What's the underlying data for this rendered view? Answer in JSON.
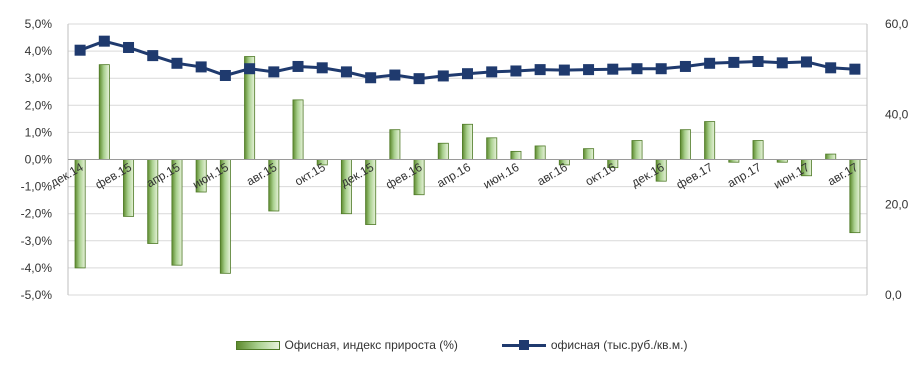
{
  "chart_data": {
    "type": "bar+line",
    "categories": [
      "дек.14",
      "янв.15",
      "фев.15",
      "мар.15",
      "апр.15",
      "май.15",
      "июн.15",
      "июл.15",
      "авг.15",
      "сен.15",
      "окт.15",
      "ноя.15",
      "дек.15",
      "янв.16",
      "фев.16",
      "мар.16",
      "апр.16",
      "май.16",
      "июн.16",
      "июл.16",
      "авг.16",
      "сен.16",
      "окт.16",
      "ноя.16",
      "дек.16",
      "янв.17",
      "фев.17",
      "мар.17",
      "апр.17",
      "май.17",
      "июн.17",
      "июл.17",
      "авг.17"
    ],
    "tick_labels": [
      "дек.14",
      "фев.15",
      "апр.15",
      "июн.15",
      "авг.15",
      "окт.15",
      "дек.15",
      "фев.16",
      "апр.16",
      "июн.16",
      "авг.16",
      "окт.16",
      "дек.16",
      "фев.17",
      "апр.17",
      "июн.17",
      "авг.17"
    ],
    "series": [
      {
        "name": "Офисная, индекс прироста (%)",
        "type": "bar",
        "axis": "left",
        "values": [
          -4.0,
          3.5,
          -2.1,
          -3.1,
          -3.9,
          -1.2,
          -4.2,
          3.8,
          -1.9,
          2.2,
          -0.2,
          -2.0,
          -2.4,
          1.1,
          -1.3,
          0.6,
          1.3,
          0.8,
          0.3,
          0.5,
          -0.2,
          0.4,
          -0.3,
          0.7,
          -0.8,
          1.1,
          1.4,
          -0.1,
          0.7,
          -0.1,
          -0.6,
          0.2,
          -2.7
        ]
      },
      {
        "name": "офисная (тыс.руб./кв.м.)",
        "type": "line",
        "axis": "right",
        "values": [
          54.2,
          56.2,
          54.8,
          53.0,
          51.3,
          50.5,
          48.6,
          50.1,
          49.4,
          50.6,
          50.3,
          49.4,
          48.1,
          48.7,
          47.9,
          48.5,
          49.0,
          49.4,
          49.6,
          49.9,
          49.8,
          49.9,
          50.0,
          50.1,
          50.1,
          50.6,
          51.3,
          51.5,
          51.7,
          51.4,
          51.6,
          50.3,
          50.0
        ]
      }
    ],
    "left_axis": {
      "ylim": [
        -5.0,
        5.0
      ],
      "ticks": [
        "5,0%",
        "4,0%",
        "3,0%",
        "2,0%",
        "1,0%",
        "0,0%",
        "-1,0%",
        "-2,0%",
        "-3,0%",
        "-4,0%",
        "-5,0%"
      ]
    },
    "right_axis": {
      "ylim": [
        0,
        60
      ],
      "ticks": [
        "60,0",
        "40,0",
        "20,0",
        "0,0"
      ]
    },
    "grid": true,
    "legend_position": "bottom",
    "colors": {
      "bar_dark": "#5d8a2e",
      "bar_light": "#e8f3dc",
      "line": "#1f3a6e",
      "grid": "#d9d9d9"
    }
  },
  "legend": {
    "bar_label": "Офисная, индекс прироста (%)",
    "line_label": "офисная (тыс.руб./кв.м.)"
  }
}
